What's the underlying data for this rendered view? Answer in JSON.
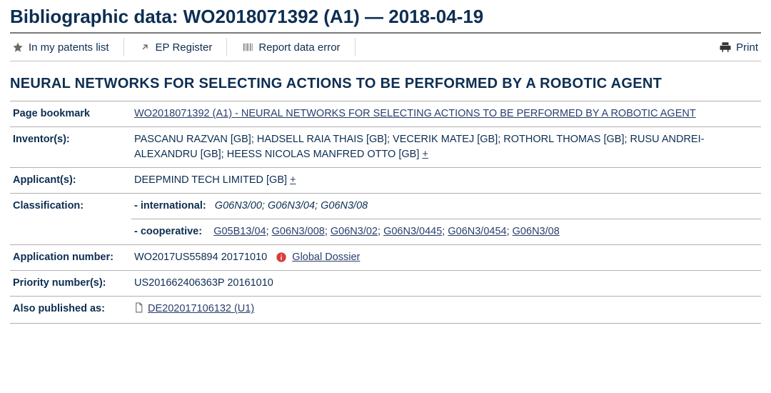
{
  "heading": "Bibliographic data: WO2018071392 (A1) ― 2018-04-19",
  "toolbar": {
    "myPatents": "In my patents list",
    "epRegister": "EP Register",
    "reportError": "Report data error",
    "print": "Print"
  },
  "title": "NEURAL NETWORKS FOR SELECTING ACTIONS TO BE PERFORMED BY A ROBOTIC AGENT",
  "rows": {
    "bookmark": {
      "label": "Page bookmark",
      "value": "WO2018071392 (A1)  -  NEURAL NETWORKS FOR SELECTING ACTIONS TO BE PERFORMED BY A ROBOTIC AGENT"
    },
    "inventors": {
      "label": "Inventor(s):",
      "value": "PASCANU RAZVAN  [GB]; HADSELL RAIA THAIS  [GB]; VECERIK MATEJ  [GB]; ROTHORL THOMAS  [GB]; RUSU ANDREI-ALEXANDRU  [GB]; HEESS NICOLAS MANFRED OTTO  [GB] ",
      "plus": "+"
    },
    "applicants": {
      "label": "Applicant(s):",
      "value": "DEEPMIND TECH LIMITED  [GB] ",
      "plus": "+"
    },
    "classification": {
      "label": "Classification:",
      "intlLabel": "- international:",
      "intlValue": "G06N3/00; G06N3/04; G06N3/08",
      "coopLabel": "- cooperative:",
      "coopItems": [
        "G05B13/04",
        "G06N3/008",
        "G06N3/02",
        "G06N3/0445",
        "G06N3/0454",
        "G06N3/08"
      ]
    },
    "appNumber": {
      "label": "Application number:",
      "value": "WO2017US55894 20171010",
      "dossier": "Global Dossier"
    },
    "priority": {
      "label": "Priority number(s):",
      "value": "US201662406363P 20161010"
    },
    "alsoPublished": {
      "label": "Also published as:",
      "value": "DE202017106132 (U1) "
    }
  },
  "colors": {
    "text": "#0d2e52",
    "link": "#2a3f6c",
    "rule": "#b0b0b0",
    "info": "#d93c3c"
  }
}
